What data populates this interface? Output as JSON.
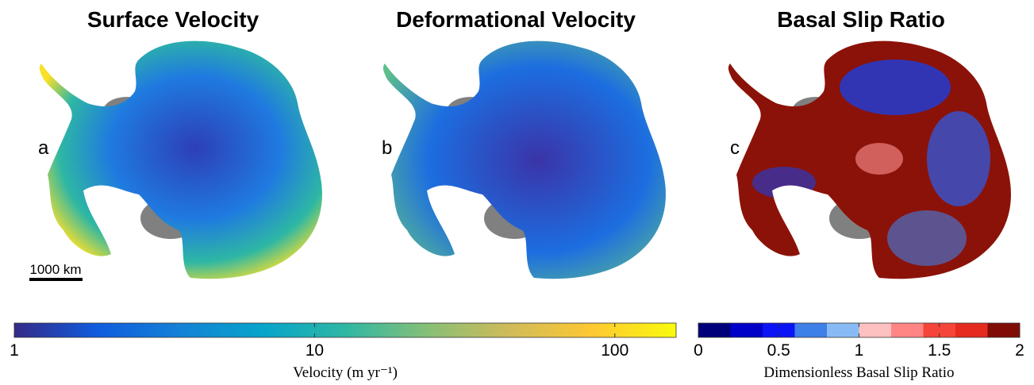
{
  "panels": [
    {
      "title": "Surface Velocity",
      "letter": "a"
    },
    {
      "title": "Deformational Velocity",
      "letter": "b"
    },
    {
      "title": "Basal Slip Ratio",
      "letter": "c"
    }
  ],
  "scale_bar": "1000 km",
  "colorbars": [
    {
      "label": "Velocity (m yr⁻¹)",
      "log": true,
      "lim": [
        1,
        160
      ],
      "ticks": [
        1,
        10,
        100
      ],
      "colors": [
        "#352a87",
        "#0f5cdd",
        "#1481d6",
        "#06a4ca",
        "#2eb7a4",
        "#87bf77",
        "#d1bb59",
        "#fec832",
        "#f9fb0e"
      ]
    },
    {
      "label": "Dimensionless Basal Slip Ratio",
      "log": false,
      "lim": [
        0,
        2
      ],
      "ticks": [
        0,
        0.5,
        1,
        1.5,
        2
      ],
      "colors": [
        "#00007a",
        "#0000c8",
        "#0a14f5",
        "#3f7fe8",
        "#88bbf5",
        "#ffc0c0",
        "#ff8585",
        "#f5453a",
        "#e52b20",
        "#7f0d06"
      ]
    }
  ]
}
